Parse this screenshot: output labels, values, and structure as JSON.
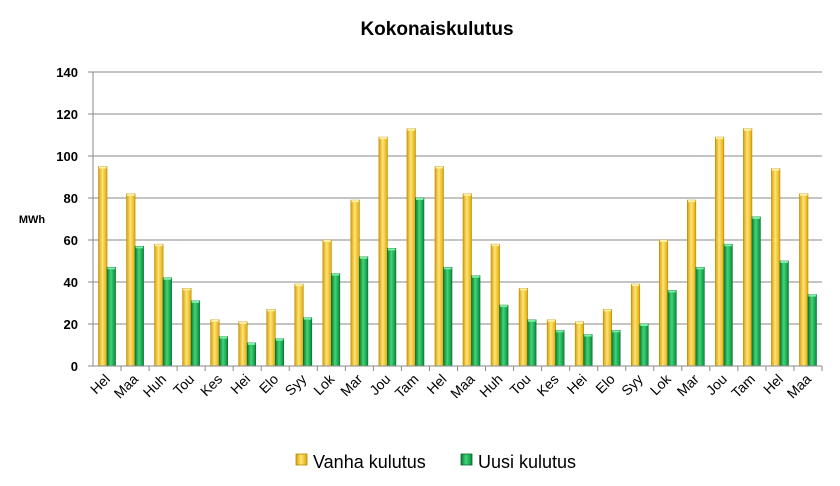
{
  "chart_data": {
    "type": "bar",
    "title": "Kokonaiskulutus",
    "ylabel": "MWh",
    "xlabel": "",
    "ylim": [
      0,
      140
    ],
    "yticks": [
      0,
      20,
      40,
      60,
      80,
      100,
      120,
      140
    ],
    "grid": true,
    "legend_position": "bottom",
    "categories": [
      "Hel",
      "Maa",
      "Huh",
      "Tou",
      "Kes",
      "Hei",
      "Elo",
      "Syy",
      "Lok",
      "Mar",
      "Jou",
      "Tam",
      "Hel",
      "Maa",
      "Huh",
      "Tou",
      "Kes",
      "Hei",
      "Elo",
      "Syy",
      "Lok",
      "Mar",
      "Jou",
      "Tam",
      "Hel",
      "Maa"
    ],
    "series": [
      {
        "name": "Vanha kulutus",
        "color": "#F5C400",
        "values": [
          95,
          82,
          58,
          37,
          22,
          21,
          27,
          39,
          60,
          79,
          109,
          113,
          95,
          82,
          58,
          37,
          22,
          21,
          27,
          39,
          60,
          79,
          109,
          113,
          94,
          82
        ]
      },
      {
        "name": "Uusi kulutus",
        "color": "#12A64A",
        "values": [
          47,
          57,
          42,
          31,
          14,
          11,
          13,
          23,
          44,
          52,
          56,
          80,
          47,
          43,
          29,
          22,
          17,
          15,
          17,
          20,
          36,
          47,
          58,
          71,
          50,
          34
        ]
      }
    ]
  }
}
